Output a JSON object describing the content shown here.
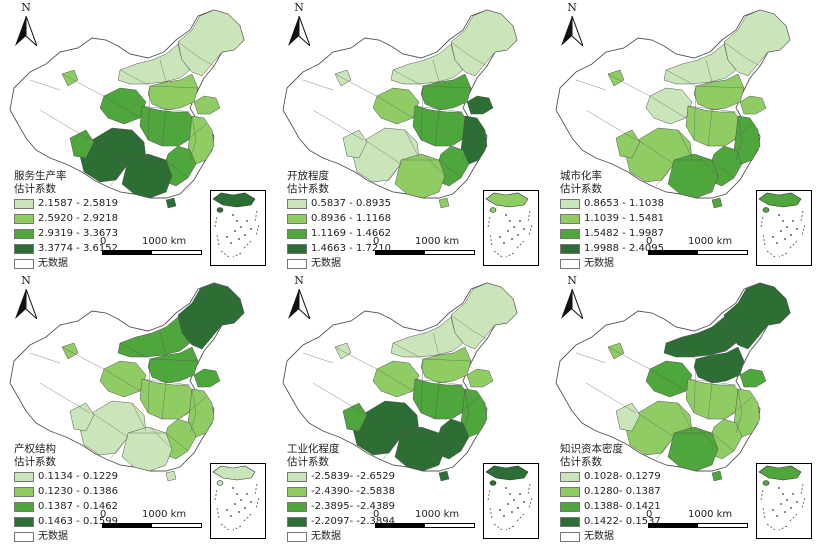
{
  "colors": {
    "class1": "#c9e5b9",
    "class2": "#8fcc63",
    "class3": "#4ea63c",
    "class4": "#2c6e34",
    "no_data": "#ffffff",
    "border": "#555555"
  },
  "shared": {
    "north_label": "N",
    "scale_zero": "0",
    "scale_max": "1000 km",
    "no_data_label": "无数据"
  },
  "panels": [
    {
      "id": "service",
      "title_line1": "服务生产率",
      "title_line2": "估计系数",
      "classes": [
        "2.1587 - 2.5819",
        "2.5920 - 2.9218",
        "2.9319 - 3.3673",
        "3.3774 - 3.6152"
      ],
      "region_levels": {
        "northeast": 1,
        "north_china": 2,
        "shandong": 2,
        "central": 3,
        "east": 2,
        "southeast": 3,
        "south": 4,
        "southwest": 4,
        "northwest_east": 3,
        "inner_mongolia": 1,
        "xinjiang_spot": 2,
        "tibet_east": 3,
        "hainan": 4
      }
    },
    {
      "id": "openness",
      "title_line1": "开放程度",
      "title_line2": "估计系数",
      "classes": [
        "0.5837 - 0.8935",
        "0.8936 - 1.1168",
        "1.1169 - 1.4662",
        "1.4663 - 1.7210"
      ],
      "region_levels": {
        "northeast": 1,
        "north_china": 3,
        "shandong": 4,
        "central": 3,
        "east": 4,
        "southeast": 3,
        "south": 2,
        "southwest": 1,
        "northwest_east": 2,
        "inner_mongolia": 1,
        "xinjiang_spot": 1,
        "tibet_east": 1,
        "hainan": 2
      }
    },
    {
      "id": "urbanization",
      "title_line1": "城市化率",
      "title_line2": "估计系数",
      "classes": [
        "0.8653 - 1.1038",
        "1.1039 - 1.5481",
        "1.5482 - 1.9987",
        "1.9988 - 2.4095"
      ],
      "region_levels": {
        "northeast": 1,
        "north_china": 2,
        "shandong": 2,
        "central": 2,
        "east": 3,
        "southeast": 3,
        "south": 3,
        "southwest": 2,
        "northwest_east": 1,
        "inner_mongolia": 1,
        "xinjiang_spot": 2,
        "tibet_east": 2,
        "hainan": 3
      }
    },
    {
      "id": "property",
      "title_line1": "产权结构",
      "title_line2": "估计系数",
      "classes": [
        "0.1134 - 0.1229",
        "0.1230 - 0.1386",
        "0.1387 - 0.1462",
        "0.1463 - 0.1599"
      ],
      "region_levels": {
        "northeast": 4,
        "north_china": 3,
        "shandong": 3,
        "central": 2,
        "east": 2,
        "southeast": 2,
        "south": 1,
        "southwest": 1,
        "northwest_east": 2,
        "inner_mongolia": 3,
        "xinjiang_spot": 2,
        "tibet_east": 1,
        "hainan": 1
      }
    },
    {
      "id": "industrialization",
      "title_line1": "工业化程度",
      "title_line2": "估计系数",
      "classes": [
        "-2.5839- -2.6529",
        "-2.4390- -2.5838",
        "-2.3895- -2.4389",
        "-2.2097- -2.3894"
      ],
      "region_levels": {
        "northeast": 1,
        "north_china": 2,
        "shandong": 2,
        "central": 3,
        "east": 3,
        "southeast": 4,
        "south": 4,
        "southwest": 4,
        "northwest_east": 2,
        "inner_mongolia": 1,
        "xinjiang_spot": 1,
        "tibet_east": 3,
        "hainan": 4
      }
    },
    {
      "id": "knowledge",
      "title_line1": "知识资本密度",
      "title_line2": "估计系数",
      "classes": [
        "0.1028- 0.1279",
        "0.1280- 0.1387",
        "0.1388- 0.1421",
        "0.1422- 0.1537"
      ],
      "region_levels": {
        "northeast": 4,
        "north_china": 4,
        "shandong": 3,
        "central": 2,
        "east": 2,
        "southeast": 2,
        "south": 3,
        "southwest": 2,
        "northwest_east": 3,
        "inner_mongolia": 4,
        "xinjiang_spot": 2,
        "tibet_east": 1,
        "hainan": 3
      }
    }
  ]
}
